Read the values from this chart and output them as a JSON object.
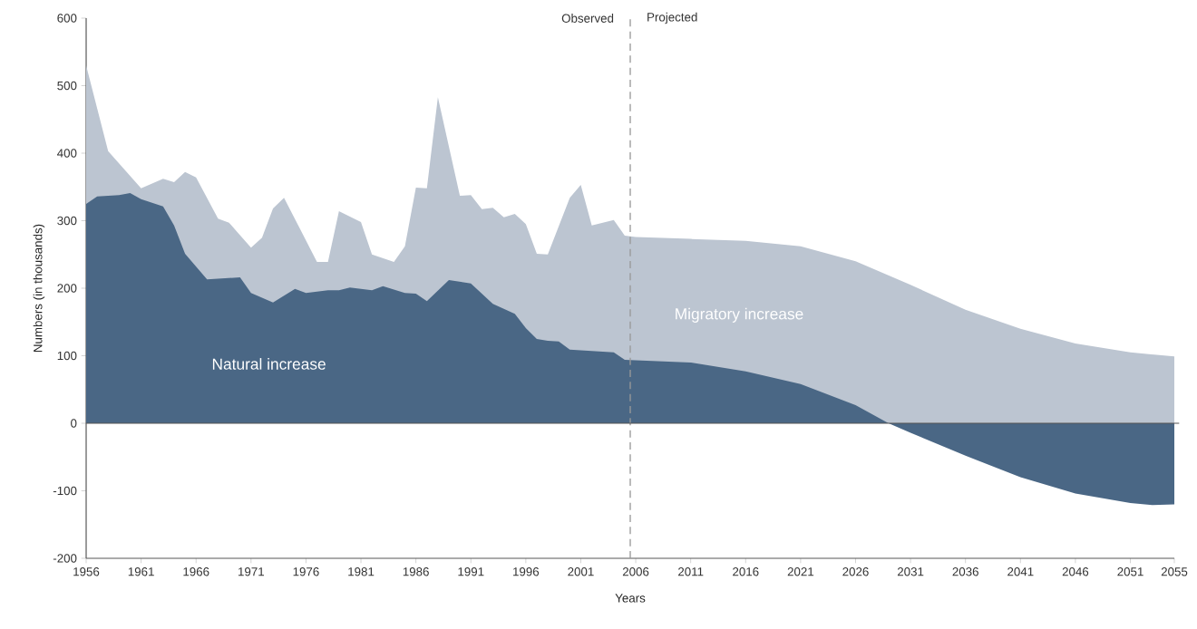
{
  "chart_data": {
    "type": "area",
    "xlabel": "Years",
    "ylabel": "Numbers (in thousands)",
    "xlim": [
      1956,
      2055
    ],
    "ylim": [
      -200,
      600
    ],
    "xticks": [
      1956,
      1961,
      1966,
      1971,
      1976,
      1981,
      1986,
      1991,
      1996,
      2001,
      2006,
      2011,
      2016,
      2021,
      2026,
      2031,
      2036,
      2041,
      2046,
      2051,
      2055
    ],
    "yticks": [
      -200,
      -100,
      0,
      100,
      200,
      300,
      400,
      500,
      600
    ],
    "grid": false,
    "series": [
      {
        "name": "Migratory increase",
        "color": "#bcc5d1",
        "x": [
          1956,
          1958,
          1961,
          1963,
          1964,
          1965,
          1966,
          1968,
          1969,
          1971,
          1972,
          1973,
          1974,
          1977,
          1978,
          1979,
          1981,
          1982,
          1984,
          1985,
          1986,
          1987,
          1988,
          1990,
          1991,
          1992,
          1993,
          1994,
          1995,
          1996,
          1997,
          1998,
          2000,
          2001,
          2002,
          2004,
          2005,
          2006,
          2011,
          2016,
          2021,
          2026,
          2031,
          2036,
          2041,
          2046,
          2051,
          2055
        ],
        "values": [
          530,
          403,
          348,
          362,
          357,
          372,
          364,
          303,
          297,
          260,
          275,
          318,
          334,
          239,
          239,
          314,
          298,
          250,
          239,
          262,
          349,
          348,
          483,
          337,
          338,
          317,
          319,
          305,
          310,
          295,
          251,
          250,
          334,
          353,
          293,
          301,
          278,
          276,
          273,
          270,
          262,
          240,
          205,
          168,
          140,
          118,
          105,
          99
        ]
      },
      {
        "name": "Natural increase",
        "color": "#4a6785",
        "x": [
          1956,
          1957,
          1959,
          1960,
          1961,
          1963,
          1964,
          1965,
          1967,
          1970,
          1971,
          1973,
          1975,
          1976,
          1978,
          1979,
          1980,
          1982,
          1983,
          1985,
          1986,
          1987,
          1989,
          1991,
          1993,
          1995,
          1996,
          1997,
          1998,
          1999,
          2000,
          2004,
          2005,
          2011,
          2016,
          2021,
          2026,
          2029,
          2031,
          2036,
          2041,
          2046,
          2051,
          2053,
          2055
        ],
        "values": [
          325,
          336,
          338,
          341,
          332,
          321,
          293,
          251,
          213,
          216,
          193,
          179,
          199,
          193,
          197,
          197,
          201,
          197,
          203,
          193,
          192,
          181,
          212,
          207,
          177,
          162,
          141,
          125,
          122,
          121,
          109,
          105,
          94,
          90,
          77,
          58,
          27,
          0,
          -14,
          -48,
          -80,
          -104,
          -118,
          -121,
          -120
        ]
      }
    ],
    "ref_lines": [
      {
        "axis": "x",
        "value": 2005.5,
        "color": "#999999",
        "line_style": "dashed"
      },
      {
        "axis": "y",
        "value": 0,
        "color": "#555555",
        "line_style": "solid"
      }
    ],
    "annotations": [
      "Observed",
      "Projected"
    ]
  }
}
